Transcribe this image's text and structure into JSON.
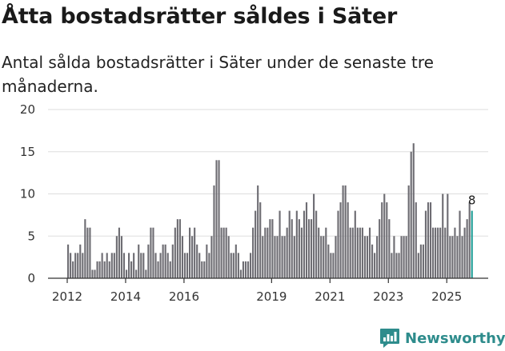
{
  "headline": "Åtta bostadsrätter såldes i Säter",
  "subtitle": "Antal sålda bostadsrätter i Säter under de senaste tre månaderna.",
  "brand": {
    "name": "Newsworthy",
    "logo_icon": "bar-chart-speech-bubble-icon",
    "color": "#2e8c8c"
  },
  "colors": {
    "bar": "#6e6d73",
    "highlight": "#1f9e96",
    "grid": "#dddddd",
    "axis": "#333333"
  },
  "chart_data": {
    "type": "bar",
    "title": "Åtta bostadsrätter såldes i Säter",
    "subtitle": "Antal sålda bostadsrätter i Säter under de senaste tre månaderna.",
    "xlabel": "",
    "ylabel": "",
    "ylim": [
      0,
      20
    ],
    "yticks": [
      "0",
      "5",
      "10",
      "15",
      "20"
    ],
    "grid": true,
    "xtick_labels": [
      "2012",
      "2014",
      "2016",
      "2019",
      "2021",
      "2023",
      "2025"
    ],
    "xtick_years": [
      2012,
      2014,
      2016,
      2019,
      2021,
      2023,
      2025
    ],
    "start_year": 2012,
    "start_month": 1,
    "last_value_label": "8",
    "highlight_last": true,
    "values": [
      4,
      3,
      2,
      3,
      3,
      4,
      3,
      7,
      6,
      6,
      1,
      1,
      2,
      2,
      3,
      2,
      3,
      2,
      3,
      3,
      5,
      6,
      5,
      3,
      1,
      3,
      2,
      3,
      1,
      4,
      3,
      3,
      1,
      4,
      6,
      6,
      3,
      2,
      3,
      4,
      4,
      3,
      2,
      4,
      6,
      7,
      7,
      5,
      3,
      3,
      6,
      5,
      6,
      4,
      3,
      2,
      2,
      4,
      3,
      5,
      11,
      14,
      14,
      6,
      6,
      6,
      5,
      3,
      3,
      4,
      3,
      1,
      2,
      2,
      2,
      3,
      6,
      8,
      11,
      9,
      5,
      6,
      6,
      7,
      7,
      5,
      5,
      8,
      5,
      5,
      6,
      8,
      7,
      5,
      8,
      7,
      6,
      8,
      9,
      7,
      7,
      10,
      8,
      6,
      5,
      5,
      6,
      4,
      3,
      3,
      5,
      8,
      9,
      11,
      11,
      9,
      6,
      6,
      8,
      6,
      6,
      6,
      5,
      5,
      6,
      4,
      3,
      5,
      7,
      9,
      10,
      9,
      7,
      3,
      5,
      3,
      3,
      5,
      5,
      5,
      11,
      15,
      16,
      9,
      3,
      4,
      4,
      8,
      9,
      9,
      6,
      6,
      6,
      6,
      10,
      6,
      10,
      5,
      5,
      6,
      5,
      8,
      5,
      6,
      7,
      9,
      8
    ]
  }
}
